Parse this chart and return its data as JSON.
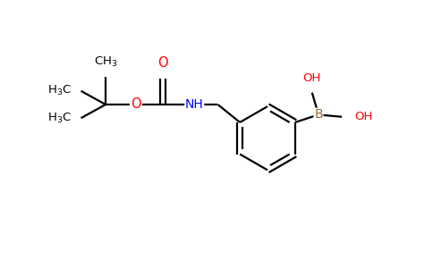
{
  "background_color": "#ffffff",
  "bond_color": "#000000",
  "oxygen_color": "#ff0000",
  "nitrogen_color": "#0000ff",
  "boron_color": "#996633",
  "line_width": 1.6,
  "font_size": 9.5,
  "fig_width": 4.84,
  "fig_height": 3.0,
  "dpi": 100,
  "xlim": [
    0,
    10
  ],
  "ylim": [
    0,
    6.2
  ]
}
